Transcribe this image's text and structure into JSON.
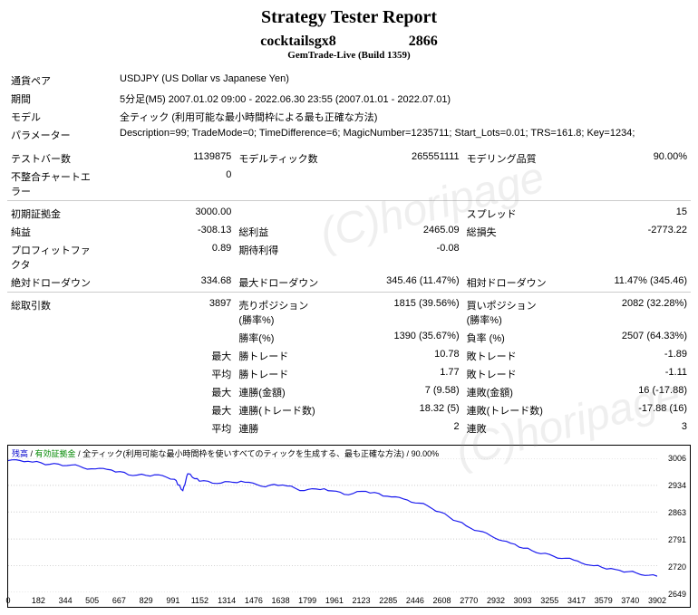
{
  "header": {
    "title": "Strategy Tester Report",
    "subtitle_prefix": "cocktailsgx8",
    "subtitle_suffix": "2866",
    "broker": "GemTrade-Live (Build 1359)"
  },
  "watermark": "(C)horipage",
  "info_rows": [
    {
      "label": "通貨ペア",
      "value": "USDJPY (US Dollar vs Japanese Yen)"
    },
    {
      "label": "期間",
      "value": "5分足(M5) 2007.01.02 09:00 - 2022.06.30 23:55 (2007.01.01 - 2022.07.01)"
    },
    {
      "label": "モデル",
      "value": "全ティック (利用可能な最小時間枠による最も正確な方法)"
    },
    {
      "label": "パラメーター",
      "value": "Description=99; TradeMode=0; TimeDifference=6; MagicNumber=1235711; Start_Lots=0.01; TRS=161.8; Key=1234;"
    }
  ],
  "grid_rows": [
    {
      "c": [
        {
          "l": "テストバー数",
          "v": "1139875"
        },
        {
          "l": "モデルティック数",
          "v": "265551111"
        },
        {
          "l": "モデリング品質",
          "v": "90.00%"
        }
      ]
    },
    {
      "c": [
        {
          "l": "不整合チャートエラー",
          "v": "0"
        },
        {
          "l": "",
          "v": ""
        },
        {
          "l": "",
          "v": ""
        }
      ]
    }
  ],
  "grid_rows2": [
    {
      "c": [
        {
          "l": "初期証拠金",
          "v": "3000.00"
        },
        {
          "l": "",
          "v": ""
        },
        {
          "l": "スプレッド",
          "v": "15"
        }
      ]
    },
    {
      "c": [
        {
          "l": "純益",
          "v": "-308.13"
        },
        {
          "l": "総利益",
          "v": "2465.09"
        },
        {
          "l": "総損失",
          "v": "-2773.22"
        }
      ]
    },
    {
      "c": [
        {
          "l": "プロフィットファクタ",
          "v": "0.89"
        },
        {
          "l": "期待利得",
          "v": "-0.08"
        },
        {
          "l": "",
          "v": ""
        }
      ]
    },
    {
      "c": [
        {
          "l": "絶対ドローダウン",
          "v": "334.68"
        },
        {
          "l": "最大ドローダウン",
          "v": "345.46 (11.47%)"
        },
        {
          "l": "相対ドローダウン",
          "v": "11.47% (345.46)"
        }
      ]
    }
  ],
  "grid_rows3": [
    {
      "c": [
        {
          "l": "総取引数",
          "v": "3897"
        },
        {
          "l": "売りポジション(勝率%)",
          "v": "1815 (39.56%)"
        },
        {
          "l": "買いポジション(勝率%)",
          "v": "2082 (32.28%)"
        }
      ]
    },
    {
      "c": [
        {
          "l": "",
          "v": ""
        },
        {
          "l": "勝率(%)",
          "v": "1390 (35.67%)"
        },
        {
          "l": "負率 (%)",
          "v": "2507 (64.33%)"
        }
      ]
    },
    {
      "c": [
        {
          "l": "",
          "v": "最大"
        },
        {
          "l": "勝トレード",
          "v": "10.78"
        },
        {
          "l": "敗トレード",
          "v": "-1.89"
        }
      ]
    },
    {
      "c": [
        {
          "l": "",
          "v": "平均"
        },
        {
          "l": "勝トレード",
          "v": "1.77"
        },
        {
          "l": "敗トレード",
          "v": "-1.11"
        }
      ]
    },
    {
      "c": [
        {
          "l": "",
          "v": "最大"
        },
        {
          "l": "連勝(金額)",
          "v": "7 (9.58)"
        },
        {
          "l": "連敗(金額)",
          "v": "16 (-17.88)"
        }
      ]
    },
    {
      "c": [
        {
          "l": "",
          "v": "最大"
        },
        {
          "l": "連勝(トレード数)",
          "v": "18.32 (5)"
        },
        {
          "l": "連敗(トレード数)",
          "v": "-17.88 (16)"
        }
      ]
    },
    {
      "c": [
        {
          "l": "",
          "v": "平均"
        },
        {
          "l": "連勝",
          "v": "2"
        },
        {
          "l": "連敗",
          "v": "3"
        }
      ]
    }
  ],
  "chart": {
    "legend_balance": "残高",
    "legend_equity": "有効証拠金",
    "legend_method": "全ティック(利用可能な最小時間枠を使いすべてのティックを生成する、最も正確な方法)",
    "legend_quality": "90.00%",
    "y_ticks": [
      3006,
      2934,
      2863,
      2791,
      2720,
      2649
    ],
    "x_ticks": [
      0,
      182,
      344,
      505,
      667,
      829,
      991,
      1152,
      1314,
      1476,
      1638,
      1799,
      1961,
      2123,
      2285,
      2446,
      2608,
      2770,
      2932,
      3093,
      3255,
      3417,
      3579,
      3740,
      3902
    ],
    "ylim": [
      2649,
      3006
    ],
    "xlim": [
      0,
      3902
    ],
    "line_color": "#1a1aee",
    "line_width": 1.2,
    "grid_color": "#cccccc",
    "background": "#ffffff",
    "series": [
      [
        0,
        3000
      ],
      [
        120,
        2998
      ],
      [
        250,
        2990
      ],
      [
        380,
        2988
      ],
      [
        500,
        2978
      ],
      [
        620,
        2975
      ],
      [
        750,
        2960
      ],
      [
        880,
        2962
      ],
      [
        1000,
        2950
      ],
      [
        1050,
        2920
      ],
      [
        1080,
        2965
      ],
      [
        1150,
        2945
      ],
      [
        1280,
        2940
      ],
      [
        1400,
        2945
      ],
      [
        1520,
        2932
      ],
      [
        1650,
        2935
      ],
      [
        1780,
        2920
      ],
      [
        1900,
        2925
      ],
      [
        2020,
        2910
      ],
      [
        2150,
        2918
      ],
      [
        2280,
        2905
      ],
      [
        2400,
        2895
      ],
      [
        2520,
        2880
      ],
      [
        2650,
        2850
      ],
      [
        2780,
        2820
      ],
      [
        2900,
        2800
      ],
      [
        3020,
        2780
      ],
      [
        3150,
        2760
      ],
      [
        3280,
        2745
      ],
      [
        3400,
        2735
      ],
      [
        3520,
        2720
      ],
      [
        3650,
        2710
      ],
      [
        3780,
        2700
      ],
      [
        3902,
        2692
      ]
    ]
  }
}
